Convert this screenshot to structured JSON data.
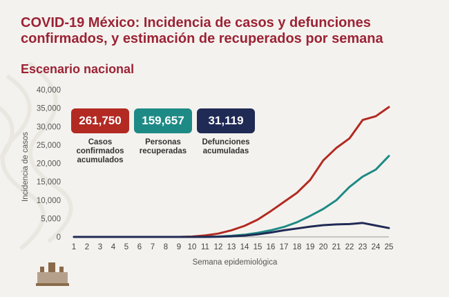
{
  "title": "COVID-19 México: Incidencia de casos y defunciones confirmados, y estimación de recuperados por semana",
  "subtitle": "Escenario nacional",
  "summary": [
    {
      "value": "261,750",
      "label": "Casos\nconfirmados\nacumulados",
      "color": "#b22a22"
    },
    {
      "value": "159,657",
      "label": "Personas\nrecuperadas",
      "color": "#1e8a86"
    },
    {
      "value": "31,119",
      "label": "Defunciones\nacumuladas",
      "color": "#1f2a55"
    }
  ],
  "chart_data": {
    "type": "line",
    "xlabel": "Semana epidemiológica",
    "ylabel": "Incidencia de casos",
    "x": [
      1,
      2,
      3,
      4,
      5,
      6,
      7,
      8,
      9,
      10,
      11,
      12,
      13,
      14,
      15,
      16,
      17,
      18,
      19,
      20,
      21,
      22,
      23,
      24,
      25
    ],
    "ylim": [
      0,
      40000
    ],
    "yticks": [
      0,
      5000,
      10000,
      15000,
      20000,
      25000,
      30000,
      35000,
      40000
    ],
    "ytick_labels": [
      "0",
      "5,000",
      "10,000",
      "15,000",
      "20,000",
      "25,000",
      "30,000",
      "35,000",
      "40,000"
    ],
    "grid": false,
    "series": [
      {
        "color": "#b22a22",
        "values": [
          0,
          0,
          0,
          0,
          0,
          0,
          0,
          0,
          0,
          100,
          400,
          900,
          1800,
          3000,
          4700,
          7000,
          9500,
          12000,
          15500,
          20800,
          24200,
          26800,
          31800,
          32800,
          35300
        ]
      },
      {
        "color": "#1e8a86",
        "values": [
          0,
          0,
          0,
          0,
          0,
          0,
          0,
          0,
          0,
          0,
          0,
          100,
          300,
          600,
          1100,
          1800,
          2700,
          4000,
          5700,
          7600,
          10000,
          13600,
          16400,
          18300,
          22000
        ]
      },
      {
        "color": "#1f2a55",
        "values": [
          0,
          0,
          0,
          0,
          0,
          0,
          0,
          0,
          0,
          0,
          20,
          60,
          150,
          350,
          700,
          1200,
          1800,
          2300,
          2800,
          3200,
          3400,
          3500,
          3800,
          3100,
          2400
        ]
      }
    ]
  }
}
